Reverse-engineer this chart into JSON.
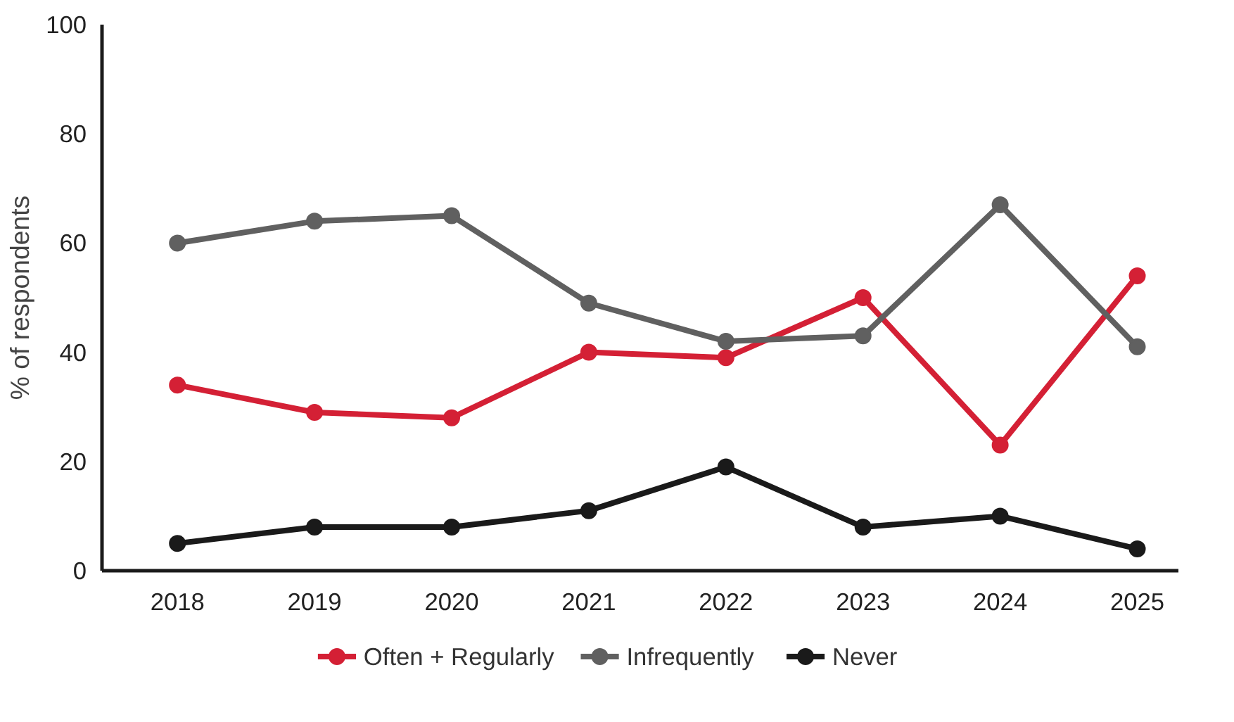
{
  "chart_data": {
    "type": "line",
    "ylabel": "% of respondents",
    "categories": [
      "2018",
      "2019",
      "2020",
      "2021",
      "2022",
      "2023",
      "2024",
      "2025"
    ],
    "series": [
      {
        "name": "Often + Regularly",
        "color": "#d42035",
        "values": [
          34,
          29,
          28,
          40,
          39,
          50,
          23,
          54
        ]
      },
      {
        "name": "Infrequently",
        "color": "#606060",
        "values": [
          60,
          64,
          65,
          49,
          42,
          43,
          67,
          41
        ]
      },
      {
        "name": "Never",
        "color": "#1a1a1a",
        "values": [
          5,
          8,
          8,
          11,
          19,
          8,
          10,
          4
        ]
      }
    ],
    "ylim": [
      0,
      100
    ],
    "yticks": [
      0,
      20,
      40,
      60,
      80,
      100
    ],
    "grid": false,
    "legend": "bottom",
    "marker": "circle",
    "line_style": "solid"
  }
}
